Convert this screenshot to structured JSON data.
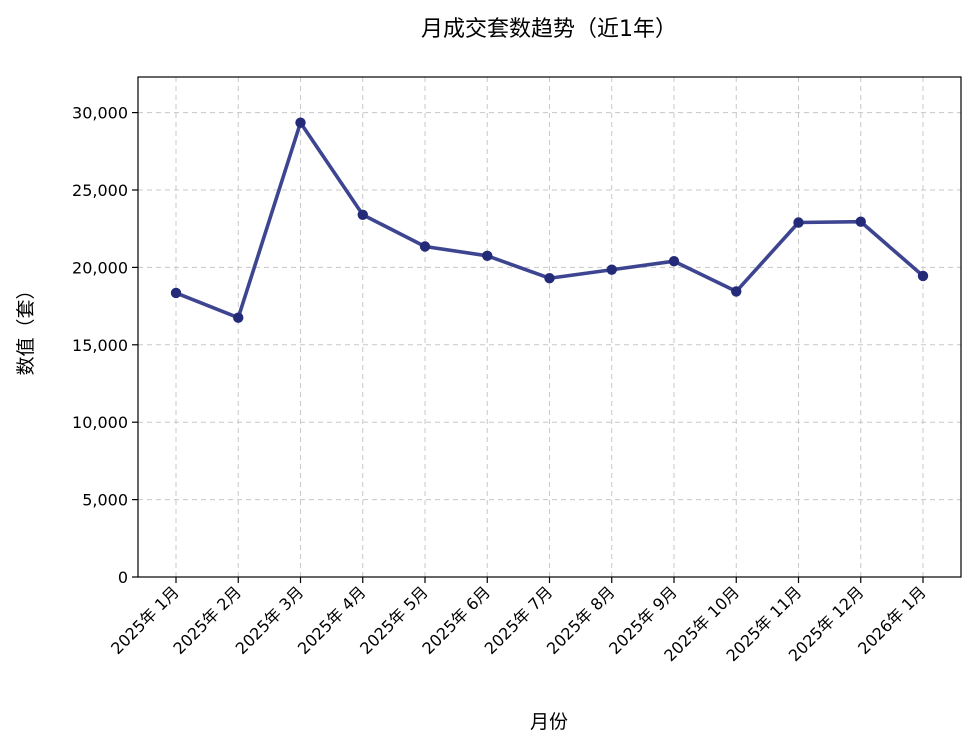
{
  "chart_data": {
    "type": "line",
    "title": "月成交套数趋势（近1年）",
    "xlabel": "月份",
    "ylabel": "数值（套）",
    "categories": [
      "2025年 1月",
      "2025年 2月",
      "2025年 3月",
      "2025年 4月",
      "2025年 5月",
      "2025年 6月",
      "2025年 7月",
      "2025年 8月",
      "2025年 9月",
      "2025年 10月",
      "2025年 11月",
      "2025年 12月",
      "2026年 1月"
    ],
    "series": [
      {
        "values": [
          18350,
          16750,
          29350,
          23400,
          21350,
          20750,
          19300,
          19850,
          20400,
          18450,
          22900,
          22950,
          19450
        ]
      }
    ],
    "ylim": [
      0,
      32300
    ],
    "yticks": [
      0,
      5000,
      10000,
      15000,
      20000,
      25000,
      30000
    ],
    "ytick_labels": [
      "0",
      "5,000",
      "10,000",
      "15,000",
      "20,000",
      "25,000",
      "30,000"
    ],
    "grid": true,
    "line_color": "#3d4590",
    "marker_color": "#232a78"
  }
}
